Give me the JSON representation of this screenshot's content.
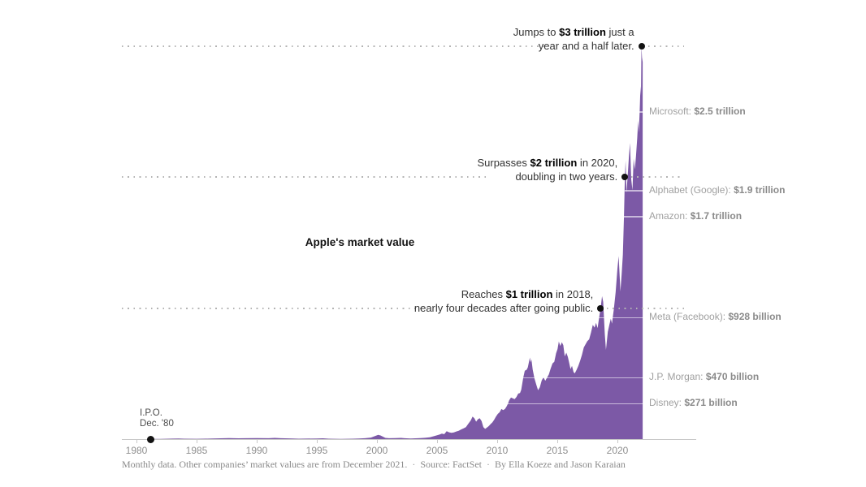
{
  "chart_data": {
    "type": "area",
    "title": "Apple's market value",
    "unit": "USD trillions",
    "legend_position": "none",
    "grid": "off",
    "x_axis": {
      "ticks": [
        "1980",
        "1985",
        "1990",
        "1995",
        "2000",
        "2005",
        "2010",
        "2015",
        "2020"
      ],
      "range": [
        1980,
        2022.1
      ]
    },
    "y_axis": {
      "range_trillions": [
        0,
        3.1
      ],
      "labels_shown": false
    },
    "series_name": "Apple market value (monthly, $ trillions)",
    "points": [
      [
        1981.1,
        0.002
      ],
      [
        1982,
        0.002
      ],
      [
        1983,
        0.004
      ],
      [
        1983.5,
        0.005
      ],
      [
        1984,
        0.003
      ],
      [
        1985,
        0.0025
      ],
      [
        1985.5,
        0.003
      ],
      [
        1986,
        0.004
      ],
      [
        1987,
        0.006
      ],
      [
        1987.7,
        0.008
      ],
      [
        1988.5,
        0.006
      ],
      [
        1989,
        0.007
      ],
      [
        1990,
        0.008
      ],
      [
        1991,
        0.007
      ],
      [
        1991.5,
        0.009
      ],
      [
        1992,
        0.007
      ],
      [
        1993,
        0.005
      ],
      [
        1993.5,
        0.003
      ],
      [
        1994,
        0.004
      ],
      [
        1995,
        0.005
      ],
      [
        1995.5,
        0.006
      ],
      [
        1996,
        0.003
      ],
      [
        1997,
        0.002
      ],
      [
        1998,
        0.003
      ],
      [
        1998.5,
        0.005
      ],
      [
        1999,
        0.007
      ],
      [
        1999.5,
        0.012
      ],
      [
        2000.1,
        0.033
      ],
      [
        2000.3,
        0.028
      ],
      [
        2000.7,
        0.009
      ],
      [
        2001,
        0.007
      ],
      [
        2001.5,
        0.008
      ],
      [
        2002,
        0.009
      ],
      [
        2002.3,
        0.007
      ],
      [
        2002.8,
        0.005
      ],
      [
        2003.2,
        0.006
      ],
      [
        2003.6,
        0.008
      ],
      [
        2004,
        0.01
      ],
      [
        2004.4,
        0.014
      ],
      [
        2004.8,
        0.024
      ],
      [
        2005,
        0.03
      ],
      [
        2005.2,
        0.035
      ],
      [
        2005.4,
        0.042
      ],
      [
        2005.6,
        0.038
      ],
      [
        2005.8,
        0.06
      ],
      [
        2006,
        0.052
      ],
      [
        2006.2,
        0.048
      ],
      [
        2006.4,
        0.051
      ],
      [
        2006.6,
        0.058
      ],
      [
        2006.8,
        0.063
      ],
      [
        2007,
        0.074
      ],
      [
        2007.2,
        0.082
      ],
      [
        2007.4,
        0.092
      ],
      [
        2007.6,
        0.118
      ],
      [
        2007.8,
        0.142
      ],
      [
        2007.95,
        0.172
      ],
      [
        2008.1,
        0.16
      ],
      [
        2008.25,
        0.133
      ],
      [
        2008.4,
        0.152
      ],
      [
        2008.55,
        0.16
      ],
      [
        2008.7,
        0.138
      ],
      [
        2008.85,
        0.092
      ],
      [
        2009,
        0.078
      ],
      [
        2009.15,
        0.088
      ],
      [
        2009.3,
        0.099
      ],
      [
        2009.45,
        0.115
      ],
      [
        2009.6,
        0.128
      ],
      [
        2009.75,
        0.148
      ],
      [
        2009.9,
        0.172
      ],
      [
        2010.05,
        0.192
      ],
      [
        2010.2,
        0.205
      ],
      [
        2010.35,
        0.23
      ],
      [
        2010.5,
        0.222
      ],
      [
        2010.65,
        0.23
      ],
      [
        2010.8,
        0.252
      ],
      [
        2010.9,
        0.271
      ],
      [
        2011,
        0.297
      ],
      [
        2011.15,
        0.318
      ],
      [
        2011.3,
        0.312
      ],
      [
        2011.45,
        0.305
      ],
      [
        2011.6,
        0.322
      ],
      [
        2011.75,
        0.348
      ],
      [
        2011.9,
        0.352
      ],
      [
        2012,
        0.377
      ],
      [
        2012.17,
        0.47
      ],
      [
        2012.3,
        0.522
      ],
      [
        2012.45,
        0.53
      ],
      [
        2012.55,
        0.548
      ],
      [
        2012.65,
        0.592
      ],
      [
        2012.72,
        0.623
      ],
      [
        2012.78,
        0.588
      ],
      [
        2012.85,
        0.608
      ],
      [
        2012.95,
        0.532
      ],
      [
        2013.1,
        0.463
      ],
      [
        2013.25,
        0.417
      ],
      [
        2013.4,
        0.373
      ],
      [
        2013.55,
        0.396
      ],
      [
        2013.7,
        0.448
      ],
      [
        2013.85,
        0.472
      ],
      [
        2014,
        0.446
      ],
      [
        2014.15,
        0.47
      ],
      [
        2014.3,
        0.495
      ],
      [
        2014.45,
        0.54
      ],
      [
        2014.6,
        0.578
      ],
      [
        2014.75,
        0.59
      ],
      [
        2014.9,
        0.655
      ],
      [
        2015.02,
        0.688
      ],
      [
        2015.13,
        0.745
      ],
      [
        2015.25,
        0.712
      ],
      [
        2015.38,
        0.74
      ],
      [
        2015.5,
        0.718
      ],
      [
        2015.62,
        0.632
      ],
      [
        2015.75,
        0.66
      ],
      [
        2015.88,
        0.628
      ],
      [
        2016,
        0.578
      ],
      [
        2016.1,
        0.535
      ],
      [
        2016.22,
        0.56
      ],
      [
        2016.35,
        0.512
      ],
      [
        2016.45,
        0.502
      ],
      [
        2016.6,
        0.528
      ],
      [
        2016.75,
        0.56
      ],
      [
        2016.9,
        0.598
      ],
      [
        2017.05,
        0.642
      ],
      [
        2017.2,
        0.7
      ],
      [
        2017.35,
        0.725
      ],
      [
        2017.5,
        0.748
      ],
      [
        2017.65,
        0.762
      ],
      [
        2017.8,
        0.812
      ],
      [
        2017.95,
        0.872
      ],
      [
        2018.1,
        0.852
      ],
      [
        2018.22,
        0.888
      ],
      [
        2018.35,
        0.848
      ],
      [
        2018.5,
        0.94
      ],
      [
        2018.6,
        1.0
      ],
      [
        2018.72,
        1.092
      ],
      [
        2018.82,
        1.048
      ],
      [
        2018.95,
        0.8
      ],
      [
        2019.05,
        0.682
      ],
      [
        2019.2,
        0.82
      ],
      [
        2019.35,
        0.882
      ],
      [
        2019.45,
        0.92
      ],
      [
        2019.55,
        0.882
      ],
      [
        2019.7,
        0.992
      ],
      [
        2019.85,
        1.12
      ],
      [
        2020,
        1.3
      ],
      [
        2020.1,
        1.398
      ],
      [
        2020.18,
        1.255
      ],
      [
        2020.25,
        1.128
      ],
      [
        2020.35,
        1.258
      ],
      [
        2020.45,
        1.408
      ],
      [
        2020.55,
        1.705
      ],
      [
        2020.62,
        2.0
      ],
      [
        2020.68,
        2.128
      ],
      [
        2020.75,
        1.882
      ],
      [
        2020.85,
        2.005
      ],
      [
        2020.95,
        2.152
      ],
      [
        2021.05,
        2.262
      ],
      [
        2021.15,
        1.985
      ],
      [
        2021.25,
        1.902
      ],
      [
        2021.35,
        2.142
      ],
      [
        2021.45,
        2.06
      ],
      [
        2021.55,
        2.165
      ],
      [
        2021.65,
        2.3
      ],
      [
        2021.72,
        2.432
      ],
      [
        2021.78,
        2.342
      ],
      [
        2021.85,
        2.5
      ],
      [
        2021.92,
        2.695
      ],
      [
        2021.96,
        2.625
      ],
      [
        2022.0,
        3.0
      ],
      [
        2022.05,
        2.915
      ],
      [
        2022.1,
        2.88
      ]
    ],
    "milestones": [
      {
        "value_trillions": 3,
        "year_reached": 2022.0,
        "line1": [
          [
            "Jumps to ",
            0
          ],
          [
            "$3 trillion",
            1
          ],
          [
            " just a",
            0
          ]
        ],
        "line2": [
          [
            "year and a half later.",
            0
          ]
        ]
      },
      {
        "value_trillions": 2,
        "year_reached": 2020.62,
        "line1": [
          [
            "Surpasses ",
            0
          ],
          [
            "$2 trillion",
            1
          ],
          [
            " in 2020,",
            0
          ]
        ],
        "line2": [
          [
            "doubling in two years.",
            0
          ]
        ]
      },
      {
        "value_trillions": 1,
        "year_reached": 2018.6,
        "line1": [
          [
            "Reaches ",
            0
          ],
          [
            "$1 trillion",
            1
          ],
          [
            " in 2018,",
            0
          ]
        ],
        "line2": [
          [
            "nearly four decades after going public.",
            0
          ]
        ]
      }
    ],
    "companies": [
      {
        "name": "Microsoft: ",
        "value_label": "$2.5 trillion",
        "value_trillions": 2.5,
        "line_start_year": 2021.85
      },
      {
        "name": "Alphabet (Google): ",
        "value_label": "$1.9 trillion",
        "value_trillions": 1.9,
        "line_start_year": 2020.61
      },
      {
        "name": "Amazon: ",
        "value_label": "$1.7 trillion",
        "value_trillions": 1.7,
        "line_start_year": 2020.57
      },
      {
        "name": "Meta (Facebook): ",
        "value_label": "$928 billion",
        "value_trillions": 0.928,
        "line_start_year": 2018.47
      },
      {
        "name": "J.P. Morgan: ",
        "value_label": "$470 billion",
        "value_trillions": 0.47,
        "line_start_year": 2012.17
      },
      {
        "name": "Disney: ",
        "value_label": "$271 billion",
        "value_trillions": 0.271,
        "line_start_year": 2010.9
      }
    ],
    "ipo": {
      "label_line1": "I.P.O.",
      "label_line2": "Dec. '80",
      "year": 1981.15
    },
    "colors": {
      "area": "#7c59a6",
      "annotation_dot": "#121212",
      "dotted_guide": "#b3b3b3",
      "axis": "#c8c8c8",
      "tick_label": "#8f8f8f",
      "annotation_text": "#333333",
      "company_label": "#a0a0a0",
      "company_value": "#8a8a8a",
      "footer_text": "#8a8a8a"
    }
  },
  "footer": {
    "note": "Monthly data. Other companies’ market values are from December 2021.",
    "sep": "·",
    "source": "Source: FactSet",
    "byline": "By Ella Koeze and Jason Karaian"
  }
}
